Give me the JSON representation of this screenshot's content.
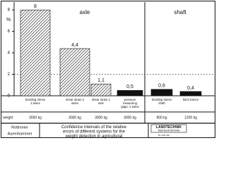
{
  "chart_data": {
    "type": "bar",
    "y_label": "%",
    "sections": [
      "axle",
      "shaft"
    ],
    "categories": [
      "bending stress 2 axles",
      "shear strain 2 axles",
      "shear strain 1 axle",
      "pressure measuring gage, 2 axles",
      "bending stress shaft",
      "hitch tractor"
    ],
    "values": [
      8,
      4.4,
      1.1,
      0.5,
      0.6,
      0.4
    ],
    "value_labels": [
      "8",
      "4,4",
      "1,1",
      "0,5",
      "0,6",
      "0,4"
    ],
    "hatched": [
      true,
      true,
      true,
      false,
      false,
      false
    ],
    "color": "#111111",
    "weight_label": "weight",
    "weights": [
      "3000 kg",
      "3000 kg",
      "3000 kg",
      "3000 kg",
      "900 kg",
      "1200 kg"
    ],
    "reference_line": 2,
    "ylim": [
      0,
      8.6
    ],
    "yticks": [
      0,
      2,
      4,
      6,
      8
    ]
  },
  "footer": {
    "authors": [
      "Rottmeier",
      "Auernhammer"
    ],
    "title": "Confidence intervals of the relative errors of different systems for the weight detection in agricultural transport vehicles",
    "logo": [
      "LANDTECHNIK",
      "WEIHENSTEPHAN"
    ],
    "code": "81 LAW 001"
  }
}
